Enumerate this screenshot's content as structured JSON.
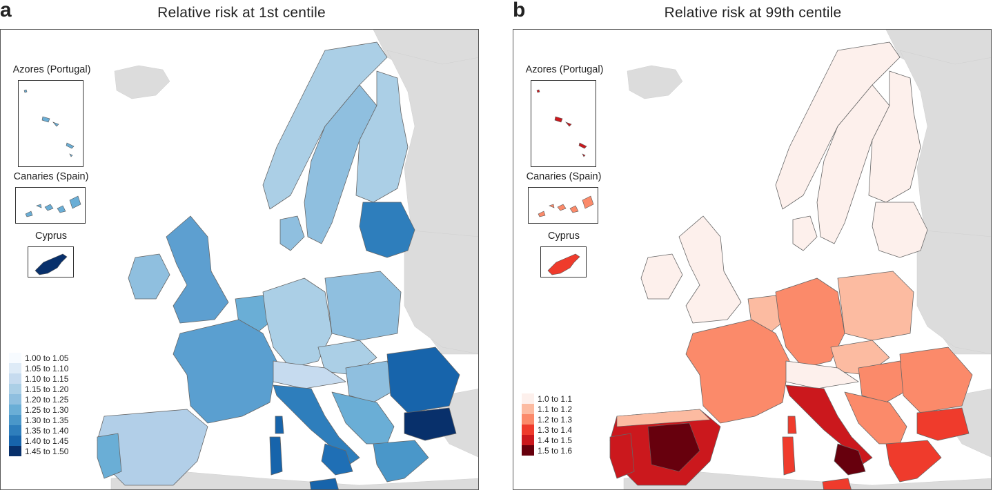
{
  "panels": [
    {
      "letter": "a",
      "title": "Relative risk at 1st centile",
      "insets": {
        "azores": "Azores (Portugal)",
        "canaries": "Canaries (Spain)",
        "cyprus": "Cyprus"
      },
      "legend": [
        {
          "label": "1.00 to 1.05",
          "color": "#f7fbff"
        },
        {
          "label": "1.05 to 1.10",
          "color": "#deebf7"
        },
        {
          "label": "1.10 to 1.15",
          "color": "#c6dbef"
        },
        {
          "label": "1.15 to 1.20",
          "color": "#abcfe6"
        },
        {
          "label": "1.20 to 1.25",
          "color": "#8fbfdf"
        },
        {
          "label": "1.25 to 1.30",
          "color": "#6aaed6"
        },
        {
          "label": "1.30 to 1.35",
          "color": "#4a97c9"
        },
        {
          "label": "1.35 to 1.40",
          "color": "#2e7ebc"
        },
        {
          "label": "1.40 to 1.45",
          "color": "#1764ab"
        },
        {
          "label": "1.45 to 1.50",
          "color": "#08306b"
        }
      ]
    },
    {
      "letter": "b",
      "title": "Relative risk at 99th centile",
      "insets": {
        "azores": "Azores (Portugal)",
        "canaries": "Canaries (Spain)",
        "cyprus": "Cyprus"
      },
      "legend": [
        {
          "label": "1.0 to 1.1",
          "color": "#fdf0ec"
        },
        {
          "label": "1.1 to 1.2",
          "color": "#fcbba1"
        },
        {
          "label": "1.2 to 1.3",
          "color": "#fb8a6a"
        },
        {
          "label": "1.3 to 1.4",
          "color": "#ef3b2c"
        },
        {
          "label": "1.4 to 1.5",
          "color": "#cb181d"
        },
        {
          "label": "1.5 to 1.6",
          "color": "#67000d"
        }
      ]
    }
  ],
  "colors": {
    "background_land": "#dcdcdc",
    "border": "#666666",
    "a": {
      "iberia": "#b2cfe8",
      "portugal": "#6aaed6",
      "france": "#5a9fd0",
      "uk": "#5d9fd0",
      "ireland": "#8fbfdf",
      "benelux": "#6aaed6",
      "germany": "#abcfe6",
      "alps": "#c6dbef",
      "italy": "#2e7ebc",
      "italy_south": "#1f6fb5",
      "balkans": "#6aaed6",
      "greece": "#4a97c9",
      "poland": "#8fbfdf",
      "czechia": "#abcfe6",
      "hungary": "#8fbfdf",
      "romania": "#1764ab",
      "bulgaria": "#08306b",
      "baltics": "#2e7ebc",
      "norway": "#abcfe6",
      "sweden": "#8fbfdf",
      "finland": "#abcfe6",
      "denmark": "#8fbfdf",
      "islands": "#1764ab",
      "cyprus": "#08306b",
      "azores": "#6aaed6",
      "canaries": "#6aaed6"
    },
    "b": {
      "iberia": "#cb181d",
      "iberia_core": "#67000d",
      "portugal": "#cb181d",
      "iberia_north": "#fcbba1",
      "france": "#fb8a6a",
      "uk": "#fdf0ec",
      "ireland": "#fdf0ec",
      "benelux": "#fcbba1",
      "germany": "#fb8a6a",
      "alps": "#fdf0ec",
      "italy": "#cb181d",
      "italy_south": "#67000d",
      "balkans": "#fb8a6a",
      "greece": "#ef3b2c",
      "poland": "#fcbba1",
      "czechia": "#fcbba1",
      "hungary": "#fb8a6a",
      "romania": "#fb8a6a",
      "bulgaria": "#ef3b2c",
      "baltics": "#fdf0ec",
      "norway": "#fdf0ec",
      "sweden": "#fdf0ec",
      "finland": "#fdf0ec",
      "denmark": "#fdf0ec",
      "islands": "#ef3b2c",
      "cyprus": "#ef3b2c",
      "azores": "#cb181d",
      "canaries": "#fb8a6a"
    }
  }
}
